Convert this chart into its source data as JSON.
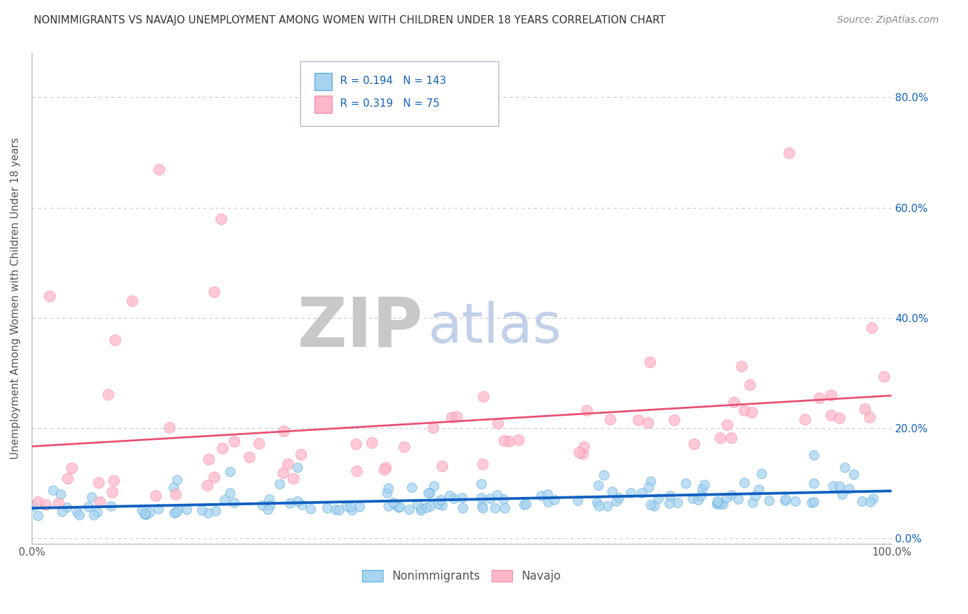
{
  "title": "NONIMMIGRANTS VS NAVAJO UNEMPLOYMENT AMONG WOMEN WITH CHILDREN UNDER 18 YEARS CORRELATION CHART",
  "source": "Source: ZipAtlas.com",
  "ylabel": "Unemployment Among Women with Children Under 18 years",
  "xlim": [
    0,
    1
  ],
  "ylim": [
    -0.01,
    0.88
  ],
  "yticks": [
    0.0,
    0.2,
    0.4,
    0.6,
    0.8
  ],
  "ytick_labels": [
    "0.0%",
    "20.0%",
    "40.0%",
    "60.0%",
    "80.0%"
  ],
  "xtick_labels": [
    "0.0%",
    "100.0%"
  ],
  "legend_labels": [
    "Nonimmigrants",
    "Navajo"
  ],
  "R_blue": 0.194,
  "N_blue": 143,
  "R_pink": 0.319,
  "N_pink": 75,
  "blue_color": "#a8d4f0",
  "blue_edge": "#5aabe0",
  "pink_color": "#ffb8c8",
  "pink_edge": "#f888a8",
  "line_blue": "#1060c0",
  "line_pink": "#e85070",
  "title_color": "#333333",
  "source_color": "#888888",
  "legend_text_color": "#1060c0",
  "watermark_ZIP_color": "#c8c8c8",
  "watermark_atlas_color": "#c0d0e8",
  "background_color": "#ffffff",
  "grid_color": "#c8c8c8",
  "seed_blue": 7,
  "seed_pink": 99
}
